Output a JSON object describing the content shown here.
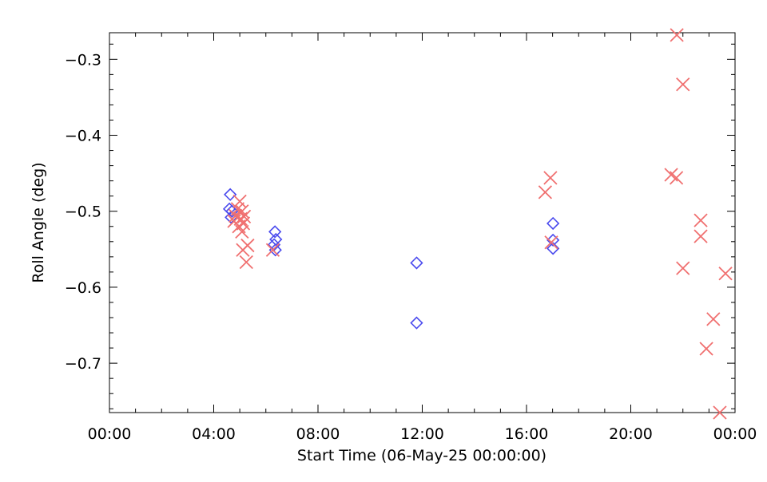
{
  "chart_data": {
    "type": "scatter",
    "title": "",
    "xlabel": "Start Time (06-May-25 00:00:00)",
    "ylabel": "Roll Angle (deg)",
    "xlim": [
      "2025-05-06T00:00",
      "2025-05-07T00:00"
    ],
    "ylim": [
      -0.765,
      -0.265
    ],
    "x_ticks": [
      {
        "t": "2025-05-06T00:00",
        "label": "00:00"
      },
      {
        "t": "2025-05-06T04:00",
        "label": "04:00"
      },
      {
        "t": "2025-05-06T08:00",
        "label": "08:00"
      },
      {
        "t": "2025-05-06T12:00",
        "label": "12:00"
      },
      {
        "t": "2025-05-06T16:00",
        "label": "16:00"
      },
      {
        "t": "2025-05-06T20:00",
        "label": "20:00"
      },
      {
        "t": "2025-05-07T00:00",
        "label": "00:00"
      }
    ],
    "y_ticks": [
      {
        "v": -0.3,
        "label": "−0.3"
      },
      {
        "v": -0.4,
        "label": "−0.4"
      },
      {
        "v": -0.5,
        "label": "−0.5"
      },
      {
        "v": -0.6,
        "label": "−0.6"
      },
      {
        "v": -0.7,
        "label": "−0.7"
      }
    ],
    "grid": false,
    "series": [
      {
        "marker": "diamond",
        "color": "#4a4aee",
        "points": [
          {
            "t": "2025-05-06T04:38",
            "y": -0.478
          },
          {
            "t": "2025-05-06T04:36",
            "y": -0.497
          },
          {
            "t": "2025-05-06T04:42",
            "y": -0.5
          },
          {
            "t": "2025-05-06T04:40",
            "y": -0.508
          },
          {
            "t": "2025-05-06T06:21",
            "y": -0.527
          },
          {
            "t": "2025-05-06T06:23",
            "y": -0.537
          },
          {
            "t": "2025-05-06T06:19",
            "y": -0.544
          },
          {
            "t": "2025-05-06T06:22",
            "y": -0.551
          },
          {
            "t": "2025-05-06T11:47",
            "y": -0.568
          },
          {
            "t": "2025-05-06T11:47",
            "y": -0.647
          },
          {
            "t": "2025-05-06T17:01",
            "y": -0.516
          },
          {
            "t": "2025-05-06T17:01",
            "y": -0.538
          },
          {
            "t": "2025-05-06T17:01",
            "y": -0.549
          }
        ]
      },
      {
        "marker": "x",
        "color": "#f07070",
        "points": [
          {
            "t": "2025-05-06T05:00",
            "y": -0.487
          },
          {
            "t": "2025-05-06T04:55",
            "y": -0.497
          },
          {
            "t": "2025-05-06T05:05",
            "y": -0.5
          },
          {
            "t": "2025-05-06T04:50",
            "y": -0.506
          },
          {
            "t": "2025-05-06T05:10",
            "y": -0.507
          },
          {
            "t": "2025-05-06T05:02",
            "y": -0.51
          },
          {
            "t": "2025-05-06T04:47",
            "y": -0.513
          },
          {
            "t": "2025-05-06T05:08",
            "y": -0.516
          },
          {
            "t": "2025-05-06T04:58",
            "y": -0.52
          },
          {
            "t": "2025-05-06T05:05",
            "y": -0.527
          },
          {
            "t": "2025-05-06T05:18",
            "y": -0.545
          },
          {
            "t": "2025-05-06T05:07",
            "y": -0.551
          },
          {
            "t": "2025-05-06T05:15",
            "y": -0.567
          },
          {
            "t": "2025-05-06T06:16",
            "y": -0.551
          },
          {
            "t": "2025-05-06T16:43",
            "y": -0.475
          },
          {
            "t": "2025-05-06T16:55",
            "y": -0.456
          },
          {
            "t": "2025-05-06T16:57",
            "y": -0.541
          },
          {
            "t": "2025-05-06T21:33",
            "y": -0.452
          },
          {
            "t": "2025-05-06T21:45",
            "y": -0.456
          },
          {
            "t": "2025-05-06T21:46",
            "y": -0.268
          },
          {
            "t": "2025-05-06T22:00",
            "y": -0.333
          },
          {
            "t": "2025-05-06T22:00",
            "y": -0.575
          },
          {
            "t": "2025-05-06T22:41",
            "y": -0.512
          },
          {
            "t": "2025-05-06T22:41",
            "y": -0.533
          },
          {
            "t": "2025-05-06T22:54",
            "y": -0.681
          },
          {
            "t": "2025-05-06T23:10",
            "y": -0.642
          },
          {
            "t": "2025-05-06T23:25",
            "y": -0.765
          },
          {
            "t": "2025-05-06T23:38",
            "y": -0.582
          }
        ]
      }
    ]
  }
}
